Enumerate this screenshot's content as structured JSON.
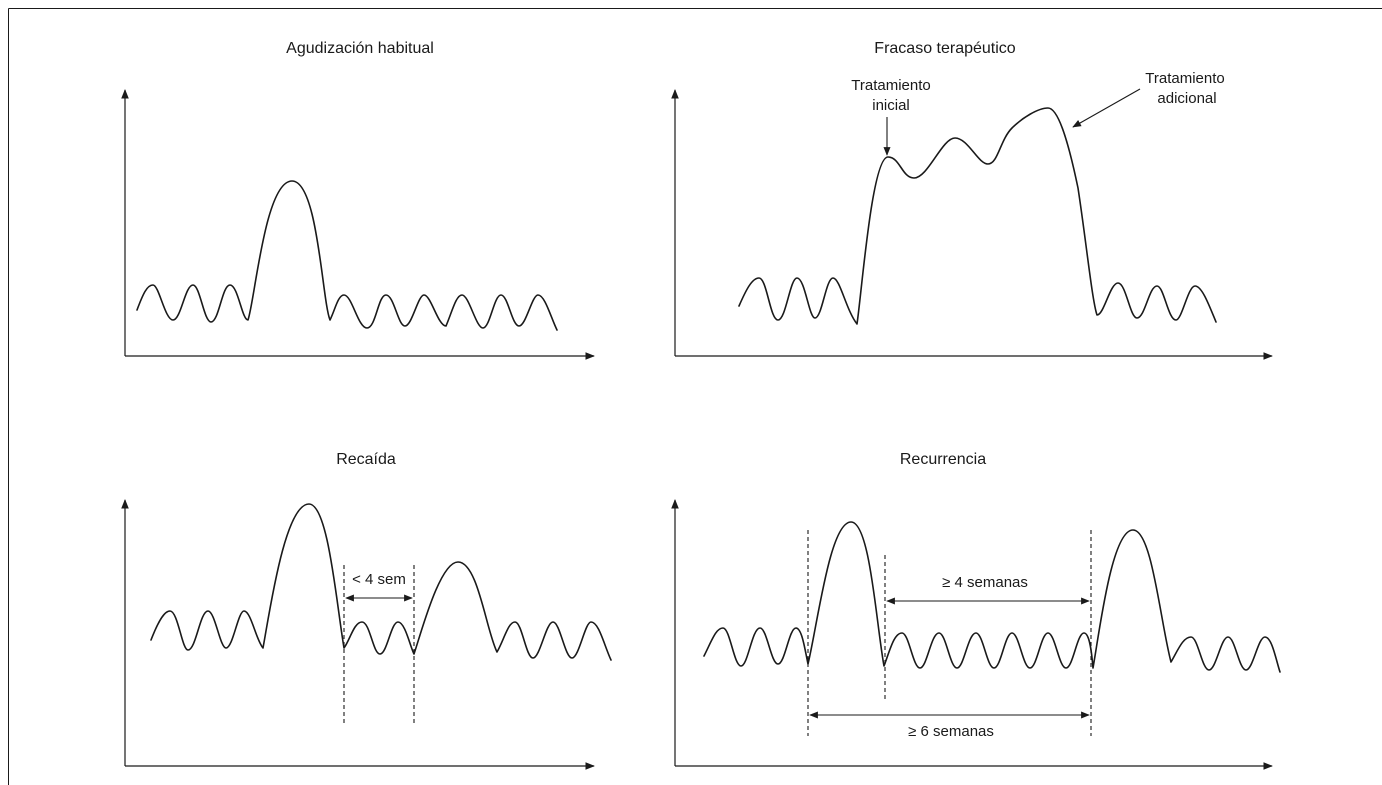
{
  "panels": {
    "top_left": {
      "title": "Agudización habitual"
    },
    "top_right": {
      "title": "Fracaso terapéutico",
      "annotation_initial": [
        "Tratamiento",
        "inicial"
      ],
      "annotation_additional": [
        "Tratamiento",
        "adicional"
      ]
    },
    "bottom_left": {
      "title": "Recaída",
      "interval_label": "< 4 sem"
    },
    "bottom_right": {
      "title": "Recurrencia",
      "interval_top_label": "≥ 4 semanas",
      "interval_bottom_label": "≥ 6 semanas"
    }
  }
}
